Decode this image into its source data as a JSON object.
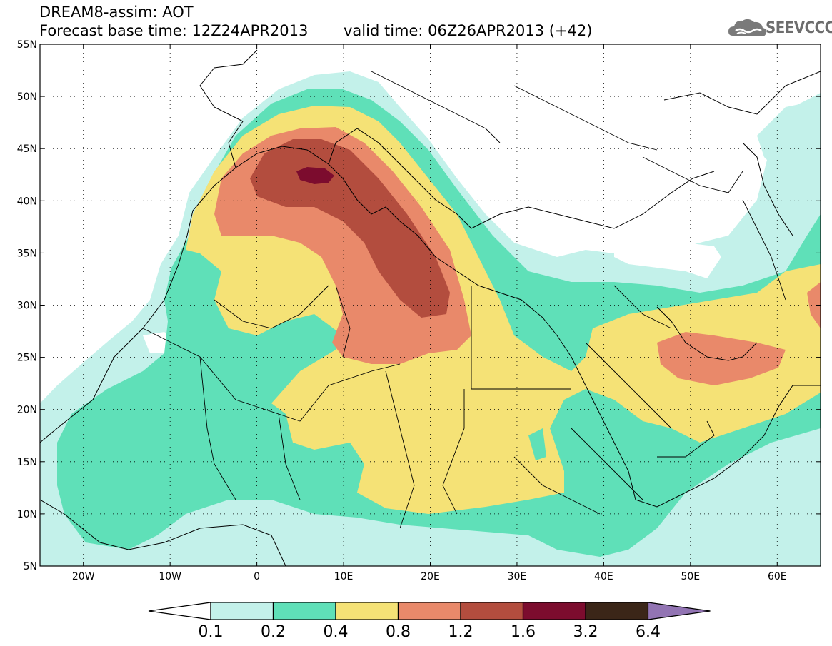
{
  "header": {
    "title_line1": "DREAM8-assim: AOT",
    "title_line2": "Forecast base time: 12Z24APR2013",
    "valid_time": "valid time: 06Z26APR2013 (+42)",
    "logo_text": "SEEVCCC",
    "logo_icon": "cloud-icon"
  },
  "map": {
    "projection": "lat-lon",
    "lon_range": [
      -25,
      65
    ],
    "lat_range": [
      5,
      55
    ],
    "lat_ticks": [
      {
        "value": 55,
        "label": "55N"
      },
      {
        "value": 50,
        "label": "50N"
      },
      {
        "value": 45,
        "label": "45N"
      },
      {
        "value": 40,
        "label": "40N"
      },
      {
        "value": 35,
        "label": "35N"
      },
      {
        "value": 30,
        "label": "30N"
      },
      {
        "value": 25,
        "label": "25N"
      },
      {
        "value": 20,
        "label": "20N"
      },
      {
        "value": 15,
        "label": "15N"
      },
      {
        "value": 10,
        "label": "10N"
      },
      {
        "value": 5,
        "label": "5N"
      }
    ],
    "lon_ticks": [
      {
        "value": -20,
        "label": "20W"
      },
      {
        "value": -10,
        "label": "10W"
      },
      {
        "value": 0,
        "label": "0"
      },
      {
        "value": 10,
        "label": "10E"
      },
      {
        "value": 20,
        "label": "20E"
      },
      {
        "value": 30,
        "label": "30E"
      },
      {
        "value": 40,
        "label": "40E"
      },
      {
        "value": 50,
        "label": "50E"
      },
      {
        "value": 60,
        "label": "60E"
      }
    ],
    "grid": "dotted"
  },
  "colorbar": {
    "levels": [
      {
        "label": "0.1",
        "color": "#c3f1ea"
      },
      {
        "label": "0.2",
        "color": "#5fe0b8"
      },
      {
        "label": "0.4",
        "color": "#f5e276"
      },
      {
        "label": "0.8",
        "color": "#e9896a"
      },
      {
        "label": "1.2",
        "color": "#b34d3e"
      },
      {
        "label": "1.6",
        "color": "#7c0c2e"
      },
      {
        "label": "3.2",
        "color": "#3b2618"
      },
      {
        "label": "6.4",
        "color": "#9274b3"
      }
    ],
    "low_end_color": "#ffffff",
    "high_end_color": "#9274b3"
  }
}
